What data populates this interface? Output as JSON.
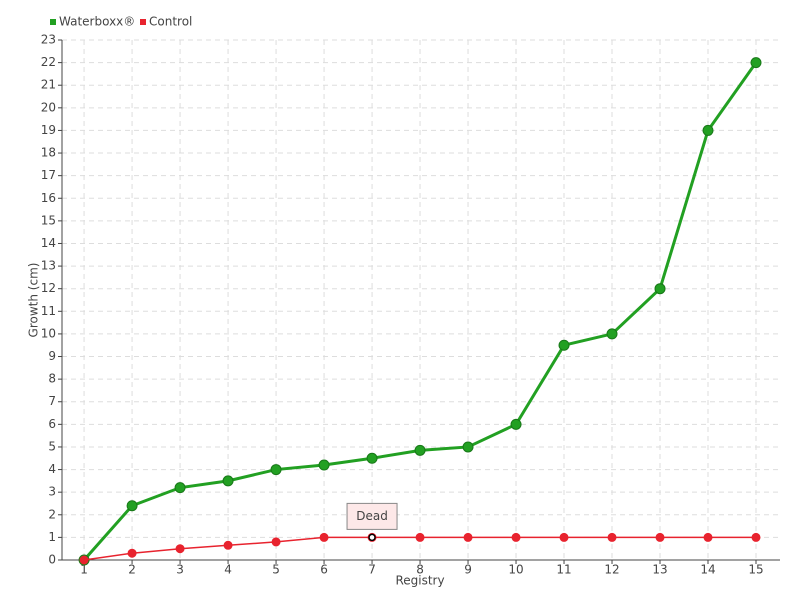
{
  "chart_data": {
    "type": "line",
    "x_label": "Registry",
    "y_label": "Growth (cm)",
    "x": [
      1,
      2,
      3,
      4,
      5,
      6,
      7,
      8,
      9,
      10,
      11,
      12,
      13,
      14,
      15
    ],
    "series": [
      {
        "name": "Waterboxx®",
        "color": "#22a022",
        "values": [
          0,
          2.4,
          3.2,
          3.5,
          4.0,
          4.2,
          4.5,
          4.85,
          5.0,
          6.0,
          9.5,
          10.0,
          12.0,
          19.0,
          22.0
        ]
      },
      {
        "name": "Control",
        "color": "#e8232e",
        "values": [
          0,
          0.3,
          0.5,
          0.65,
          0.8,
          1,
          1,
          1,
          1,
          1,
          1,
          1,
          1,
          1,
          1
        ]
      }
    ],
    "annotations": [
      {
        "text": "Dead",
        "x": 7,
        "y": 1
      }
    ],
    "xlim": [
      0.54,
      15.5
    ],
    "ylim": [
      0,
      23
    ],
    "xticks": [
      1,
      2,
      3,
      4,
      5,
      6,
      7,
      8,
      9,
      10,
      11,
      12,
      13,
      14,
      15
    ],
    "yticks": [
      0,
      1,
      2,
      3,
      4,
      5,
      6,
      7,
      8,
      9,
      10,
      11,
      12,
      13,
      14,
      15,
      16,
      17,
      18,
      19,
      20,
      21,
      22,
      23
    ],
    "grid": true
  }
}
